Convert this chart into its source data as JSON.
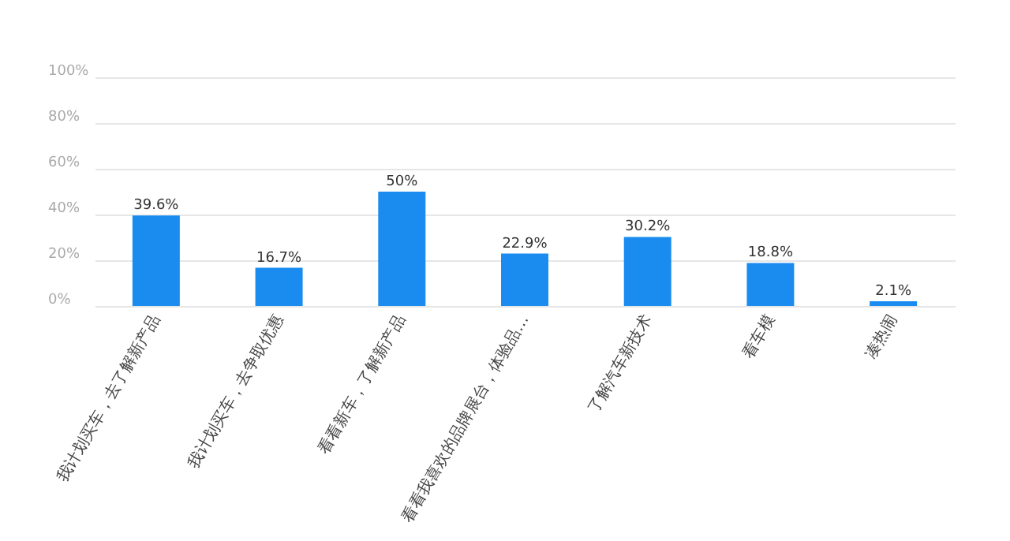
{
  "chart_data": {
    "type": "bar",
    "categories": [
      "我计划买车，去了解新产品",
      "我计划买车，去争取优惠",
      "看看新车，了解新产品",
      "看看我喜欢的品牌展台，体验品…",
      "了解汽车新技术",
      "看车模",
      "凑热闹"
    ],
    "values": [
      39.6,
      16.7,
      50,
      22.9,
      30.2,
      18.8,
      2.1
    ],
    "value_labels": [
      "39.6%",
      "16.7%",
      "50%",
      "22.9%",
      "30.2%",
      "18.8%",
      "2.1%"
    ],
    "color": "#1a8cf0",
    "ylim": [
      0,
      100
    ],
    "yticks": [
      {
        "value": 0,
        "label": "0%"
      },
      {
        "value": 20,
        "label": "20%"
      },
      {
        "value": 40,
        "label": "40%"
      },
      {
        "value": 60,
        "label": "60%"
      },
      {
        "value": 80,
        "label": "80%"
      },
      {
        "value": 100,
        "label": "100%"
      }
    ],
    "grid": true
  }
}
